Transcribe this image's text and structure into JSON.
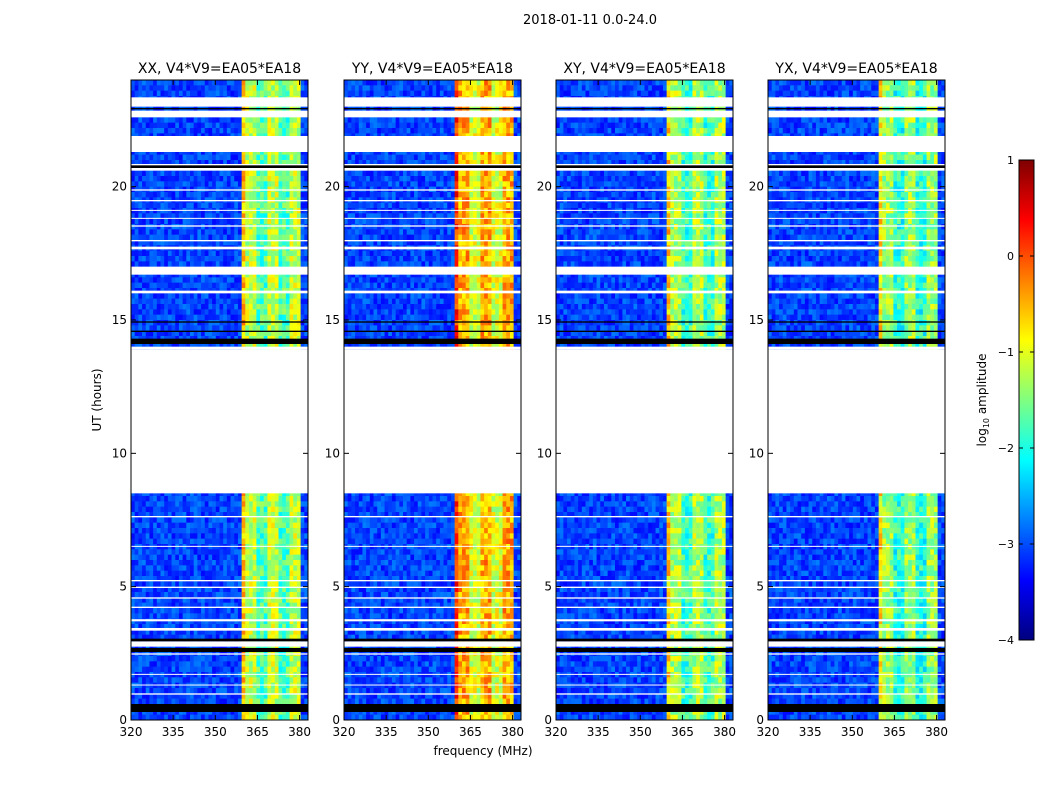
{
  "figure": {
    "suptitle": "2018-01-11 0.0-24.0",
    "ylabel": "UT (hours)",
    "xlabel": "frequency (MHz)"
  },
  "colorbar": {
    "label_prefix": "log",
    "label_sub": "10",
    "label_suffix": " amplitude",
    "range": [
      -4,
      1
    ],
    "ticks": [
      "1",
      "0",
      "−1",
      "−2",
      "−3",
      "−4"
    ],
    "tick_values": [
      1,
      0,
      -1,
      -2,
      -3,
      -4
    ],
    "stops": [
      "#00007f",
      "#0000ff",
      "#0080ff",
      "#00ffff",
      "#80ff80",
      "#ffff00",
      "#ff8000",
      "#ff0000",
      "#7f0000"
    ]
  },
  "chart_data": {
    "type": "heatmap",
    "x_range": [
      320,
      383
    ],
    "y_range": [
      0,
      24
    ],
    "x_ticks": [
      320,
      335,
      350,
      365,
      380
    ],
    "y_ticks": [
      0,
      5,
      10,
      15,
      20
    ],
    "xlabel": "frequency (MHz)",
    "ylabel": "UT (hours)",
    "panels": [
      {
        "title": "XX, V4*V9=EA05*EA18",
        "high_band": [
          360,
          380
        ],
        "band_level": -1.1
      },
      {
        "title": "YY, V4*V9=EA05*EA18",
        "high_band": [
          360,
          380
        ],
        "band_level": -0.4
      },
      {
        "title": "XY, V4*V9=EA05*EA18",
        "high_band": [
          360,
          380
        ],
        "band_level": -1.2
      },
      {
        "title": "YX, V4*V9=EA05*EA18",
        "high_band": [
          360,
          380
        ],
        "band_level": -1.3
      }
    ],
    "blank_intervals_hours": [
      [
        8.5,
        13.9
      ]
    ],
    "background_level": -3.1
  }
}
